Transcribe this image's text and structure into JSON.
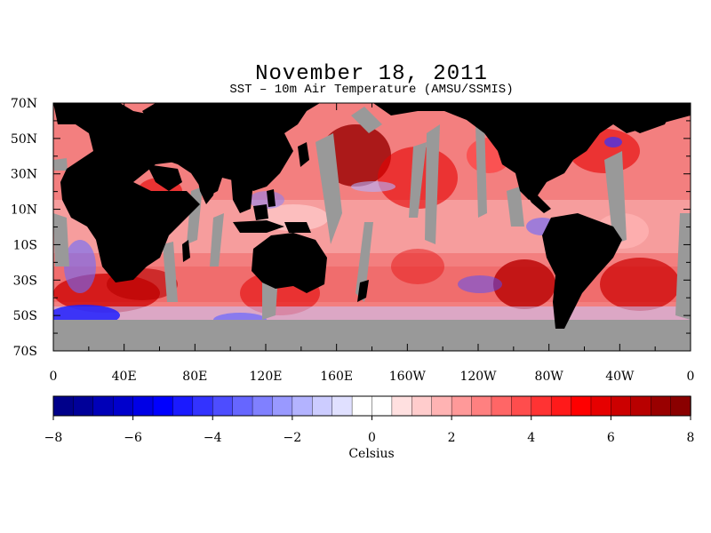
{
  "title": "November 18, 2011",
  "subtitle": "SST – 10m Air Temperature (AMSU/SSMIS)",
  "map": {
    "lat_labels": [
      "70N",
      "50N",
      "30N",
      "10N",
      "10S",
      "30S",
      "50S",
      "70S"
    ],
    "lon_labels": [
      "0",
      "40E",
      "80E",
      "120E",
      "160E",
      "160W",
      "120W",
      "80W",
      "40W",
      "0"
    ],
    "colors": {
      "land": "#000000",
      "missing_data": "#999999",
      "frame": "#000000"
    }
  },
  "colorbar": {
    "unit_label": "Celsius",
    "tick_labels": [
      "−8",
      "−6",
      "−4",
      "−2",
      "0",
      "2",
      "4",
      "6",
      "8"
    ],
    "min": -8,
    "max": 8,
    "step": 0.5,
    "colors": [
      "#00008a",
      "#000099",
      "#0000b8",
      "#0000cc",
      "#0000e6",
      "#0000ff",
      "#1a1aff",
      "#3333ff",
      "#4d4dff",
      "#6666ff",
      "#8080ff",
      "#9999ff",
      "#b3b3ff",
      "#ccccff",
      "#e0e0ff",
      "#ffffff",
      "#ffffff",
      "#ffe0e0",
      "#ffcccc",
      "#ffb3b3",
      "#ff9999",
      "#ff8080",
      "#ff6666",
      "#ff4d4d",
      "#ff3333",
      "#ff1a1a",
      "#ff0000",
      "#e60000",
      "#cc0000",
      "#b80000",
      "#990000",
      "#8a0000"
    ]
  }
}
